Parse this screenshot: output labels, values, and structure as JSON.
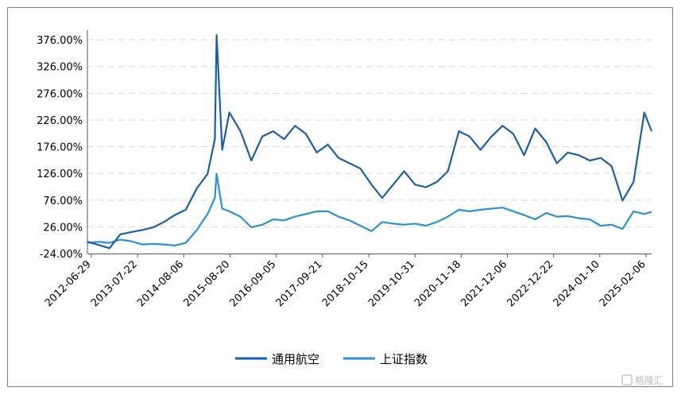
{
  "chart_data": {
    "type": "line",
    "title": "",
    "xlabel": "",
    "ylabel": "",
    "ylim": [
      -24,
      394
    ],
    "y_ticks": [
      "-24.00%",
      "26.00%",
      "76.00%",
      "126.00%",
      "176.00%",
      "226.00%",
      "276.00%",
      "326.00%",
      "376.00%"
    ],
    "x_ticks": [
      "2012-06-29",
      "2013-07-22",
      "2014-08-06",
      "2015-08-20",
      "2016-09-05",
      "2017-09-21",
      "2018-10-15",
      "2019-10-31",
      "2020-11-18",
      "2021-12-06",
      "2022-12-22",
      "2024-01-10",
      "2025-02-06"
    ],
    "x": [
      "2012-06-29",
      "2012-09-30",
      "2012-12-31",
      "2013-03-31",
      "2013-06-30",
      "2013-09-30",
      "2013-12-31",
      "2014-03-31",
      "2014-06-30",
      "2014-09-30",
      "2014-12-31",
      "2015-03-31",
      "2015-05-31",
      "2015-06-15",
      "2015-07-31",
      "2015-09-30",
      "2015-12-31",
      "2016-03-31",
      "2016-06-30",
      "2016-09-30",
      "2016-12-31",
      "2017-03-31",
      "2017-06-30",
      "2017-09-30",
      "2017-12-31",
      "2018-03-31",
      "2018-06-30",
      "2018-09-30",
      "2018-12-31",
      "2019-03-31",
      "2019-06-30",
      "2019-09-30",
      "2019-12-31",
      "2020-03-31",
      "2020-06-30",
      "2020-09-30",
      "2020-12-31",
      "2021-03-31",
      "2021-06-30",
      "2021-09-30",
      "2021-12-31",
      "2022-03-31",
      "2022-06-30",
      "2022-09-30",
      "2022-12-31",
      "2023-03-31",
      "2023-06-30",
      "2023-09-30",
      "2023-12-31",
      "2024-03-31",
      "2024-06-30",
      "2024-09-30",
      "2024-12-31",
      "2025-03-31",
      "2025-05-31"
    ],
    "series": [
      {
        "name": "通用航空",
        "color": "#1a5fa8",
        "values": [
          -2,
          -8,
          -14,
          12,
          16,
          20,
          25,
          35,
          48,
          58,
          98,
          125,
          190,
          385,
          170,
          240,
          205,
          150,
          195,
          205,
          190,
          215,
          200,
          165,
          180,
          155,
          145,
          135,
          105,
          80,
          105,
          130,
          105,
          100,
          110,
          130,
          205,
          195,
          170,
          195,
          215,
          200,
          160,
          210,
          185,
          145,
          165,
          160,
          150,
          155,
          140,
          75,
          110,
          240,
          205
        ]
      },
      {
        "name": "上证指数",
        "color": "#2f8fd4",
        "values": [
          -4,
          -2,
          -4,
          2,
          -1,
          -7,
          -6,
          -7,
          -9,
          -4,
          20,
          50,
          80,
          125,
          60,
          55,
          45,
          25,
          30,
          40,
          38,
          45,
          50,
          55,
          55,
          45,
          38,
          28,
          18,
          35,
          32,
          30,
          32,
          28,
          35,
          45,
          58,
          55,
          58,
          60,
          62,
          55,
          48,
          40,
          52,
          45,
          46,
          42,
          40,
          28,
          30,
          22,
          55,
          50,
          54
        ]
      }
    ],
    "legend_position": "bottom",
    "grid": "horizontal dashed"
  },
  "watermark": "格隆汇"
}
